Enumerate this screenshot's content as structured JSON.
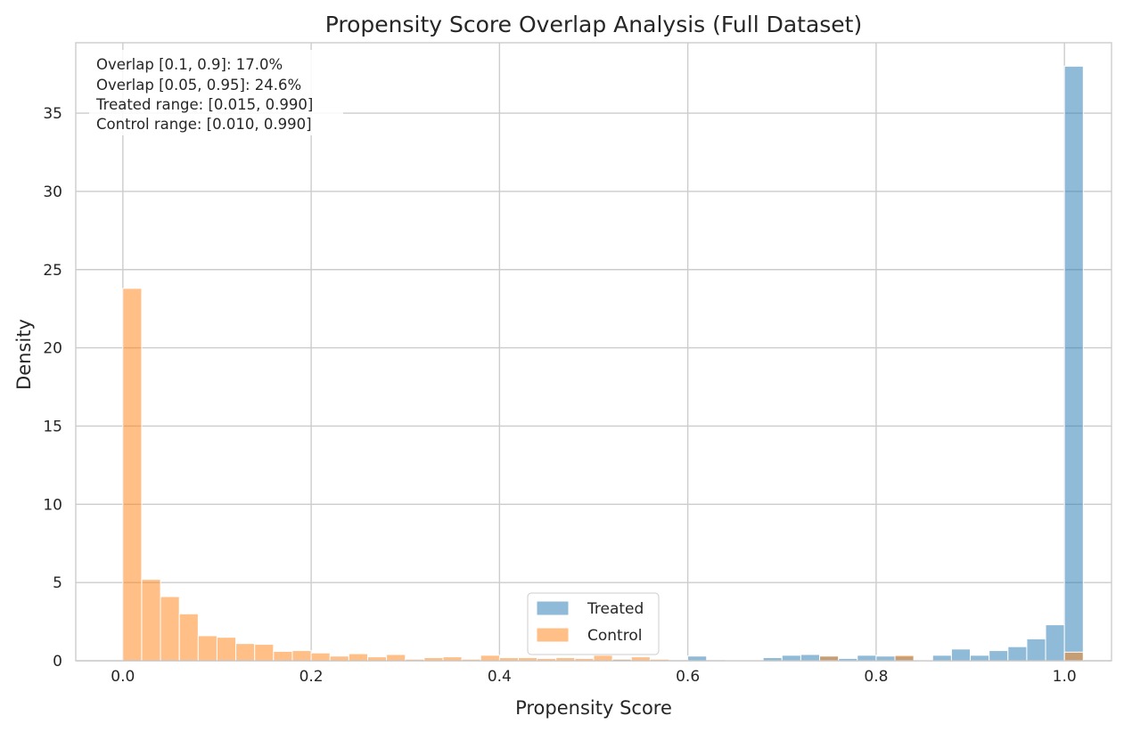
{
  "chart_data": {
    "type": "bar",
    "title": "Propensity Score Overlap Analysis (Full Dataset)",
    "xlabel": "Propensity Score",
    "ylabel": "Density",
    "xlim": [
      -0.05,
      1.05
    ],
    "ylim": [
      0,
      39.5
    ],
    "xticks": [
      0.0,
      0.2,
      0.4,
      0.6,
      0.8,
      1.0
    ],
    "xtick_labels": [
      "0.0",
      "0.2",
      "0.4",
      "0.6",
      "0.8",
      "1.0"
    ],
    "yticks": [
      0,
      5,
      10,
      15,
      20,
      25,
      30,
      35
    ],
    "ytick_labels": [
      "0",
      "5",
      "10",
      "15",
      "20",
      "25",
      "30",
      "35"
    ],
    "grid": true,
    "legend_position": "lower-center",
    "bin_width": 0.02,
    "bin_start": 0.0,
    "series": [
      {
        "name": "Treated",
        "color": "#1f77b4",
        "alpha": 0.5,
        "values": [
          0,
          0,
          0,
          0,
          0,
          0,
          0,
          0,
          0,
          0,
          0,
          0,
          0,
          0,
          0,
          0,
          0,
          0,
          0,
          0,
          0,
          0,
          0,
          0,
          0,
          0,
          0.1,
          0,
          0,
          0,
          0.3,
          0,
          0.05,
          0.05,
          0.2,
          0.35,
          0.4,
          0.3,
          0.15,
          0.35,
          0.3,
          0.3,
          0.05,
          0.35,
          0.75,
          0.35,
          0.65,
          0.9,
          1.4,
          2.3,
          38.0
        ]
      },
      {
        "name": "Control",
        "color": "#ff7f0e",
        "alpha": 0.5,
        "values": [
          23.8,
          5.2,
          4.1,
          3.0,
          1.6,
          1.5,
          1.1,
          1.05,
          0.6,
          0.65,
          0.5,
          0.3,
          0.45,
          0.25,
          0.4,
          0.1,
          0.2,
          0.25,
          0.1,
          0.35,
          0.2,
          0.2,
          0.15,
          0.2,
          0.15,
          0.35,
          0.1,
          0.25,
          0.1,
          0,
          0,
          0,
          0,
          0,
          0,
          0,
          0,
          0.3,
          0,
          0,
          0,
          0.35,
          0,
          0,
          0,
          0,
          0,
          0,
          0,
          0,
          0.55
        ]
      }
    ],
    "annotations": [
      "Overlap [0.1, 0.9]: 17.0%",
      "Overlap [0.05, 0.95]: 24.6%",
      "Treated range: [0.015, 0.990]",
      "Control range: [0.010, 0.990]"
    ]
  }
}
